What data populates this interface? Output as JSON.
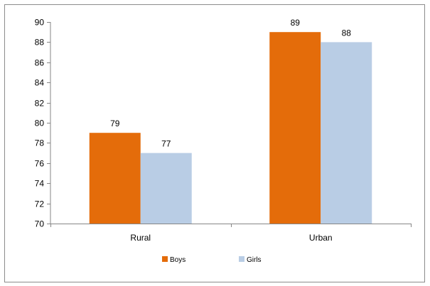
{
  "chart_data": {
    "type": "bar",
    "categories": [
      "Rural",
      "Urban"
    ],
    "series": [
      {
        "name": "Boys",
        "values": [
          79,
          89
        ],
        "color": "#e46c0a"
      },
      {
        "name": "Girls",
        "values": [
          77,
          88
        ],
        "color": "#b9cde5"
      }
    ],
    "ylim": [
      70,
      90
    ],
    "yticks": [
      70,
      72,
      74,
      76,
      78,
      80,
      82,
      84,
      86,
      88,
      90
    ],
    "data_labels": true,
    "grid": false,
    "legend_position": "bottom"
  }
}
